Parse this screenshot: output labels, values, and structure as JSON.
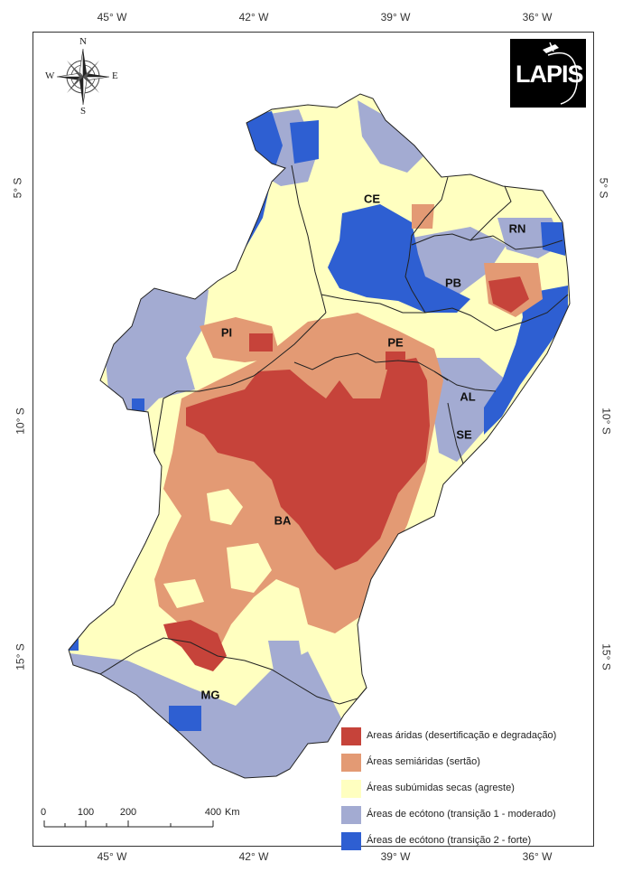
{
  "map": {
    "logo_text": "LAPIS",
    "compass": {
      "n": "N",
      "s": "S",
      "e": "E",
      "w": "W"
    },
    "longitude_ticks": [
      "45° W",
      "42° W",
      "39° W",
      "36° W"
    ],
    "latitude_ticks": [
      "5° S",
      "10° S",
      "15° S"
    ],
    "states": [
      "CE",
      "RN",
      "PB",
      "PE",
      "PI",
      "AL",
      "SE",
      "BA",
      "MG"
    ],
    "legend": [
      {
        "label": "Areas áridas (desertificação e degradação)",
        "color": "#c6433a"
      },
      {
        "label": "Áreas semiáridas (sertão)",
        "color": "#e39a74"
      },
      {
        "label": "Áreas subúmidas secas (agreste)",
        "color": "#ffffc0"
      },
      {
        "label": "Áreas de ecótono (transição 1 - moderado)",
        "color": "#a3abd2"
      },
      {
        "label": "Áreas de ecótono (transição 2 - forte)",
        "color": "#2e5fd2"
      }
    ],
    "scale": {
      "ticks": [
        "0",
        "100",
        "200",
        "400"
      ],
      "unit": "Km"
    }
  }
}
